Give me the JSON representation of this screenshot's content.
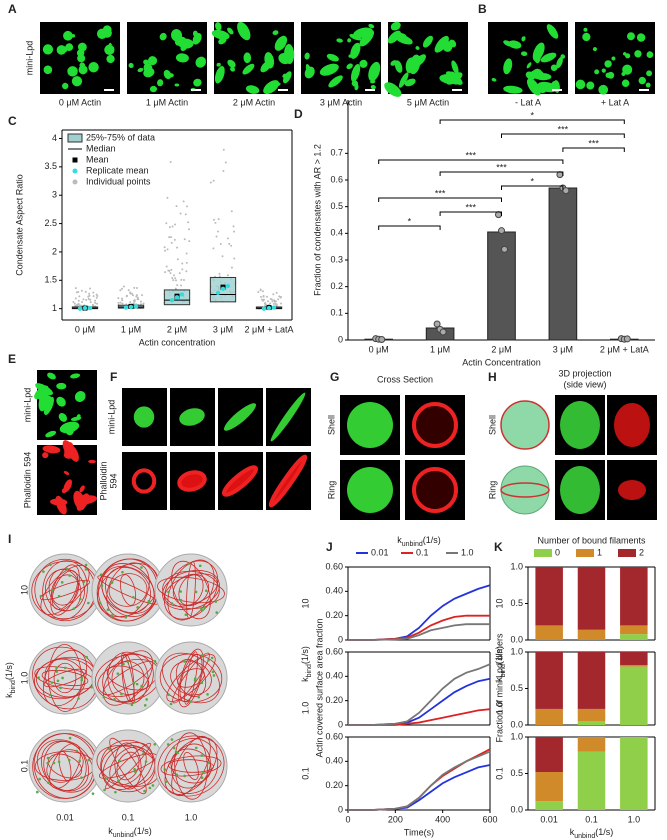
{
  "panels": {
    "A": {
      "label": "A",
      "row_label": "mini-Lpd",
      "captions": [
        "0 μM Actin",
        "1 μM Actin",
        "2 μM Actin",
        "3 μM Actin",
        "5 μM Actin"
      ]
    },
    "B": {
      "label": "B",
      "captions": [
        "- Lat A",
        "+ Lat A"
      ]
    },
    "E": {
      "label": "E",
      "row_labels": [
        "mini-Lpd",
        "Phalloidin 594"
      ]
    },
    "F": {
      "label": "F",
      "row_labels": [
        [
          "mini-Lpd"
        ],
        [
          "Phalloidin",
          "594"
        ]
      ]
    },
    "G": {
      "label": "G",
      "title": "Cross Section",
      "row_labels": [
        "Shell",
        "Ring"
      ]
    },
    "H": {
      "label": "H",
      "title": [
        "3D projection",
        "(side view)"
      ],
      "row_labels": [
        "Shell",
        "Ring"
      ]
    },
    "I": {
      "label": "I",
      "row_labels": [
        "10",
        "1.0",
        "0.1"
      ],
      "col_labels": [
        "0.01",
        "0.1",
        "1.0"
      ]
    }
  },
  "kbind": {
    "k": "k",
    "sub": "bind",
    "unit": "(1/s)"
  },
  "kunbind": {
    "k": "k",
    "sub": "unbind",
    "unit": "(1/s)"
  },
  "chart_data": [
    {
      "type": "box",
      "panel": "C",
      "ylabel": "Condensate Aspect Ratio",
      "xlabel": "Actin concentration",
      "categories": [
        "0 μM",
        "1 μM",
        "2 μM",
        "3 μM",
        "2 μM + LatA"
      ],
      "q1": [
        1.0,
        1.01,
        1.07,
        1.12,
        1.0
      ],
      "median": [
        1.01,
        1.03,
        1.15,
        1.25,
        1.01
      ],
      "q3": [
        1.03,
        1.06,
        1.33,
        1.55,
        1.03
      ],
      "mean": [
        1.01,
        1.04,
        1.22,
        1.38,
        1.02
      ],
      "replicate_means": [
        [
          1.0,
          1.01,
          1.01
        ],
        [
          1.02,
          1.03,
          1.04
        ],
        [
          1.15,
          1.2,
          1.25
        ],
        [
          1.28,
          1.35,
          1.4
        ],
        [
          1.0,
          1.01,
          1.02
        ]
      ],
      "box_color": "#9fcfcf",
      "replicate_color": "#33dddd",
      "point_color": "#bbbbbb",
      "legend": [
        "25%-75% of data",
        "Median",
        "Mean",
        "Replicate mean",
        "Individual points"
      ],
      "ylim": [
        0.8,
        4.15
      ],
      "yticks": [
        1,
        1.5,
        2,
        2.5,
        3,
        3.5,
        4
      ]
    },
    {
      "type": "bar",
      "panel": "D",
      "ylabel": "Fraction of condensates with AR > 1.2",
      "xlabel": "Actin Concentration",
      "categories": [
        "0 μM",
        "1 μM",
        "2 μM",
        "3 μM",
        "2 μM + LatA"
      ],
      "values": [
        0.003,
        0.045,
        0.405,
        0.57,
        0.003
      ],
      "points": [
        [
          0.005,
          0.003,
          0.002
        ],
        [
          0.06,
          0.04,
          0.03
        ],
        [
          0.47,
          0.41,
          0.34
        ],
        [
          0.62,
          0.57,
          0.56
        ],
        [
          0.005,
          0.003,
          0.004
        ]
      ],
      "color": "#555555",
      "brackets": [
        {
          "from": 0,
          "to": 1,
          "label": "*"
        },
        {
          "from": 1,
          "to": 2,
          "label": "***"
        },
        {
          "from": 0,
          "to": 2,
          "label": "***"
        },
        {
          "from": 2,
          "to": 3,
          "label": "*"
        },
        {
          "from": 1,
          "to": 3,
          "label": "***"
        },
        {
          "from": 0,
          "to": 3,
          "label": "***"
        },
        {
          "from": 3,
          "to": 4,
          "label": "***"
        },
        {
          "from": 2,
          "to": 4,
          "label": "***"
        },
        {
          "from": 1,
          "to": 4,
          "label": "*"
        }
      ],
      "ylim": [
        0,
        0.9
      ],
      "yticks": [
        0,
        0.1,
        0.2,
        0.3,
        0.4,
        0.5,
        0.6,
        0.7
      ]
    },
    {
      "type": "line",
      "panel": "J",
      "row_label": "10",
      "x": [
        0,
        100,
        200,
        250,
        300,
        350,
        400,
        450,
        500,
        550,
        600
      ],
      "xlim": [
        0,
        600
      ],
      "series": [
        {
          "name": "0.01",
          "color": "#2233dd",
          "values": [
            0,
            0,
            0.01,
            0.03,
            0.1,
            0.2,
            0.28,
            0.34,
            0.38,
            0.42,
            0.45
          ]
        },
        {
          "name": "0.1",
          "color": "#dd2222",
          "values": [
            0,
            0,
            0.01,
            0.02,
            0.06,
            0.12,
            0.16,
            0.19,
            0.2,
            0.2,
            0.2
          ]
        },
        {
          "name": "1.0",
          "color": "#777777",
          "values": [
            0,
            0,
            0.005,
            0.01,
            0.04,
            0.08,
            0.1,
            0.12,
            0.13,
            0.13,
            0.13
          ]
        }
      ],
      "ylim": [
        0,
        0.6
      ],
      "yticks": [
        0,
        {
          "value": 0.2,
          "label": "0.20"
        },
        {
          "value": 0.4,
          "label": "0.40"
        },
        {
          "value": 0.6,
          "label": "0.60"
        }
      ]
    },
    {
      "type": "line",
      "row_label": "1.0",
      "ylabel": "Actin covered surface area fraction",
      "x": [
        0,
        100,
        200,
        250,
        300,
        350,
        400,
        450,
        500,
        550,
        600
      ],
      "xlim": [
        0,
        600
      ],
      "series": [
        {
          "color": "#2233dd",
          "values": [
            0,
            0,
            0.01,
            0.02,
            0.06,
            0.13,
            0.2,
            0.27,
            0.32,
            0.36,
            0.38
          ]
        },
        {
          "color": "#dd2222",
          "values": [
            0,
            0,
            0,
            0.01,
            0.02,
            0.04,
            0.06,
            0.08,
            0.1,
            0.12,
            0.13
          ]
        },
        {
          "color": "#777777",
          "values": [
            0,
            0,
            0.01,
            0.03,
            0.1,
            0.2,
            0.3,
            0.38,
            0.43,
            0.46,
            0.5
          ]
        }
      ],
      "ylim": [
        0,
        0.6
      ],
      "yticks": [
        0,
        {
          "value": 0.2,
          "label": "0.20"
        },
        {
          "value": 0.4,
          "label": "0.40"
        },
        {
          "value": 0.6,
          "label": "0.60"
        }
      ]
    },
    {
      "type": "line",
      "row_label": "0.1",
      "xlabel": "Time(s)",
      "x": [
        0,
        100,
        200,
        250,
        300,
        350,
        400,
        450,
        500,
        550,
        600
      ],
      "xlim": [
        0,
        600
      ],
      "xticks": [
        0,
        200,
        400,
        600
      ],
      "series": [
        {
          "color": "#2233dd",
          "values": [
            0,
            0,
            0.01,
            0.02,
            0.08,
            0.15,
            0.22,
            0.27,
            0.31,
            0.35,
            0.37
          ]
        },
        {
          "color": "#dd2222",
          "values": [
            0,
            0,
            0.01,
            0.03,
            0.1,
            0.2,
            0.28,
            0.34,
            0.4,
            0.45,
            0.5
          ]
        },
        {
          "color": "#777777",
          "values": [
            0,
            0,
            0.01,
            0.03,
            0.1,
            0.2,
            0.29,
            0.35,
            0.4,
            0.44,
            0.48
          ]
        }
      ],
      "ylim": [
        0,
        0.6
      ],
      "yticks": [
        0,
        {
          "value": 0.2,
          "label": "0.20"
        },
        {
          "value": 0.4,
          "label": "0.40"
        },
        {
          "value": 0.6,
          "label": "0.60"
        }
      ]
    },
    {
      "type": "stacked",
      "panel": "K",
      "row_label": "10",
      "legend_title": "Number of bound filaments",
      "categories": [
        "0.01",
        "0.1",
        "1.0"
      ],
      "series": [
        {
          "name": "0",
          "color": "#8fcf4a",
          "values": [
            0,
            0,
            0.08
          ]
        },
        {
          "name": "1",
          "color": "#d08a2a",
          "values": [
            0.2,
            0.14,
            0.12
          ]
        },
        {
          "name": "2",
          "color": "#a3282e",
          "values": [
            0.8,
            0.86,
            0.8
          ]
        }
      ],
      "ylim": [
        0,
        1
      ],
      "yticks": [
        {
          "value": 0,
          "label": "0.0"
        },
        0.5,
        {
          "value": 1,
          "label": "1.0"
        }
      ]
    },
    {
      "type": "stacked",
      "row_label": "1.0",
      "ylabel": "Fraction of mini-Lpd dimers",
      "categories": [
        "0.01",
        "0.1",
        "1.0"
      ],
      "series": [
        {
          "color": "#8fcf4a",
          "values": [
            0,
            0.05,
            0.8
          ]
        },
        {
          "color": "#d08a2a",
          "values": [
            0.22,
            0.17,
            0.02
          ]
        },
        {
          "color": "#a3282e",
          "values": [
            0.78,
            0.78,
            0.18
          ]
        }
      ],
      "ylim": [
        0,
        1
      ],
      "yticks": [
        {
          "value": 0,
          "label": "0.0"
        },
        0.5,
        {
          "value": 1,
          "label": "1.0"
        }
      ]
    },
    {
      "type": "stacked",
      "row_label": "0.1",
      "categories": [
        "0.01",
        "0.1",
        "1.0"
      ],
      "series": [
        {
          "color": "#8fcf4a",
          "values": [
            0.12,
            0.8,
            1.0
          ]
        },
        {
          "color": "#d08a2a",
          "values": [
            0.4,
            0.2,
            0
          ]
        },
        {
          "color": "#a3282e",
          "values": [
            0.48,
            0,
            0
          ]
        }
      ],
      "ylim": [
        0,
        1
      ],
      "yticks": [
        {
          "value": 0,
          "label": "0.0"
        },
        0.5,
        {
          "value": 1,
          "label": "1.0"
        }
      ]
    }
  ]
}
